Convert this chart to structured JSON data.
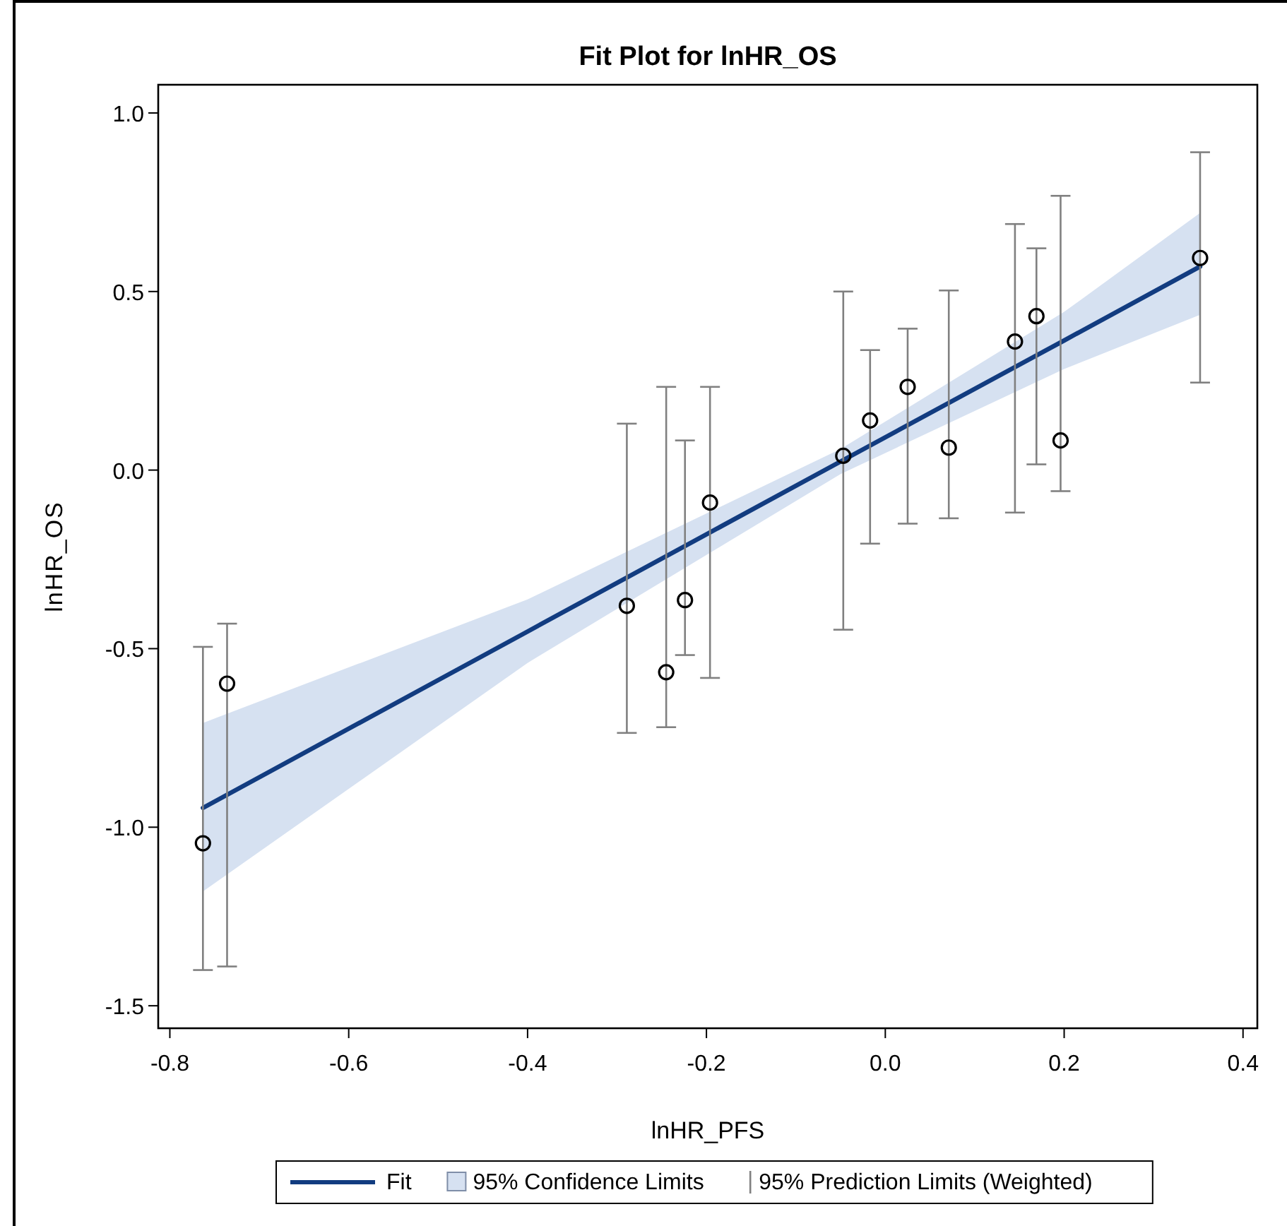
{
  "chart_data": {
    "type": "scatter",
    "title": "Fit Plot for lnHR_OS",
    "xlabel": "lnHR_PFS",
    "ylabel": "lnHR_OS",
    "xlim": [
      -0.813,
      0.416
    ],
    "ylim": [
      -1.563,
      1.079
    ],
    "xticks": [
      -0.8,
      -0.6,
      -0.4,
      -0.2,
      {
        "value": 0,
        "label": "0.0"
      },
      0.2,
      0.4
    ],
    "yticks": [
      {
        "value": -1.5,
        "label": "-1.5"
      },
      {
        "value": -1,
        "label": "-1.0"
      },
      {
        "value": -0.5,
        "label": "-0.5"
      },
      {
        "value": 0,
        "label": "0.0"
      },
      {
        "value": 0.5,
        "label": "0.5"
      },
      {
        "value": 1,
        "label": "1.0"
      }
    ],
    "grid": false,
    "legend": "bottom",
    "marker": "circle",
    "series": [
      {
        "name": "Fit",
        "type": "line",
        "color": "#123c80",
        "line_style": "solid",
        "marker": "none",
        "x": [
          -0.763,
          -0.4,
          -0.05,
          0.2,
          0.352
        ],
        "values": [
          -0.946,
          -0.452,
          0.024,
          0.363,
          0.57
        ],
        "lower": [
          -1.18,
          -0.54,
          -0.011,
          0.283,
          0.435
        ],
        "upper": [
          -0.708,
          -0.362,
          0.059,
          0.443,
          0.72
        ]
      },
      {
        "name": "95% Confidence Limits",
        "type": "area",
        "color": "#d6e1f1"
      },
      {
        "name": "95% Prediction Limits (Weighted)",
        "type": "scatter",
        "color": "#000000",
        "x": [
          -0.763,
          -0.736,
          -0.289,
          -0.245,
          -0.224,
          -0.196,
          -0.047,
          -0.017,
          0.025,
          0.071,
          0.145,
          0.169,
          0.196,
          0.352
        ],
        "values": [
          -1.045,
          -0.598,
          -0.38,
          -0.566,
          -0.364,
          -0.091,
          0.04,
          0.139,
          0.233,
          0.063,
          0.36,
          0.431,
          0.083,
          0.594
        ],
        "errors": [
          [
            -1.4,
            -0.495
          ],
          [
            -1.39,
            -0.43
          ],
          [
            -0.736,
            0.13
          ],
          [
            -0.72,
            0.233
          ],
          [
            -0.518,
            0.083
          ],
          [
            -0.582,
            0.233
          ],
          [
            -0.447,
            0.5
          ],
          [
            -0.206,
            0.336
          ],
          [
            -0.15,
            0.396
          ],
          [
            -0.135,
            0.503
          ],
          [
            -0.119,
            0.689
          ],
          [
            0.016,
            0.621
          ],
          [
            -0.059,
            0.768
          ],
          [
            0.245,
            0.89
          ]
        ]
      }
    ]
  }
}
